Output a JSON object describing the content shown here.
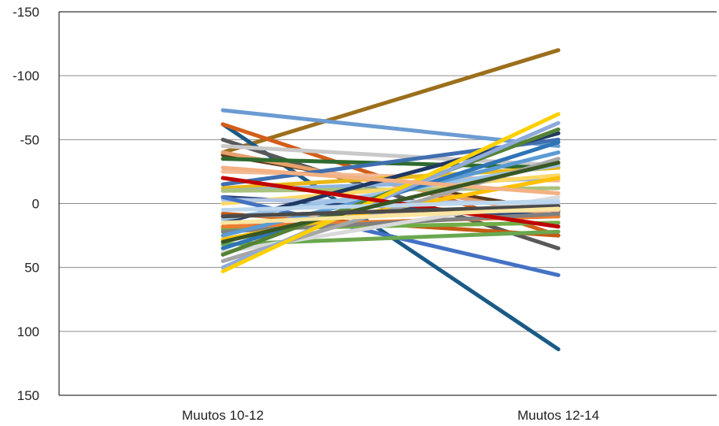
{
  "chart_data": {
    "type": "line",
    "title": "",
    "xlabel": "",
    "ylabel": "",
    "categories": [
      "Muutos 10-12",
      "Muutos 12-14"
    ],
    "y_axis": {
      "reversed": true,
      "ylim": [
        -150,
        150
      ],
      "ticks": [
        -150,
        -100,
        -50,
        0,
        50,
        100,
        150
      ],
      "tick_labels": [
        "-150",
        "-100",
        "-50",
        "0",
        "50",
        "100",
        "150"
      ]
    },
    "grid": true,
    "legend": "none",
    "series": [
      {
        "color": "#9c6f1c",
        "values": [
          -40,
          -120
        ]
      },
      {
        "color": "#1a5a86",
        "values": [
          -62,
          114
        ]
      },
      {
        "color": "#6b9bd1",
        "values": [
          -73,
          -45
        ]
      },
      {
        "color": "#d25e1a",
        "values": [
          -62,
          25
        ]
      },
      {
        "color": "#595959",
        "values": [
          -50,
          35
        ]
      },
      {
        "color": "#c9c9c9",
        "values": [
          -45,
          -30
        ]
      },
      {
        "color": "#5a3a1a",
        "values": [
          -38,
          6
        ]
      },
      {
        "color": "#e8a06a",
        "values": [
          -40,
          10
        ]
      },
      {
        "color": "#2f6b2f",
        "values": [
          -35,
          -28
        ]
      },
      {
        "color": "#f2bb96",
        "values": [
          -25,
          -18
        ]
      },
      {
        "color": "#3f6fb0",
        "values": [
          -15,
          -50
        ]
      },
      {
        "color": "#e8b818",
        "values": [
          -12,
          -28
        ]
      },
      {
        "color": "#8fb4e0",
        "values": [
          -10,
          -20
        ]
      },
      {
        "color": "#264478",
        "values": [
          -5,
          10
        ]
      },
      {
        "color": "#a9c27e",
        "values": [
          -10,
          -12
        ]
      },
      {
        "color": "#ffd966",
        "values": [
          0,
          -22
        ]
      },
      {
        "color": "#b4c7e7",
        "values": [
          -3,
          0
        ]
      },
      {
        "color": "#4472c4",
        "values": [
          -5,
          56
        ]
      },
      {
        "color": "#c55a11",
        "values": [
          8,
          25
        ]
      },
      {
        "color": "#f7c8a0",
        "values": [
          10,
          5
        ]
      },
      {
        "color": "#1f3864",
        "values": [
          15,
          -55
        ]
      },
      {
        "color": "#70ad47",
        "values": [
          20,
          15
        ]
      },
      {
        "color": "#9dc3e6",
        "values": [
          12,
          -30
        ]
      },
      {
        "color": "#ed7d31",
        "values": [
          18,
          10
        ]
      },
      {
        "color": "#808080",
        "values": [
          22,
          8
        ]
      },
      {
        "color": "#5b9bd5",
        "values": [
          25,
          -40
        ]
      },
      {
        "color": "#ffc000",
        "values": [
          28,
          -20
        ]
      },
      {
        "color": "#6aa84f",
        "values": [
          32,
          22
        ]
      },
      {
        "color": "#2e75b6",
        "values": [
          35,
          -48
        ]
      },
      {
        "color": "#d9d9d9",
        "values": [
          38,
          -5
        ]
      },
      {
        "color": "#548235",
        "values": [
          40,
          -58
        ]
      },
      {
        "color": "#a6a6a6",
        "values": [
          45,
          -35
        ]
      },
      {
        "color": "#8eaadb",
        "values": [
          50,
          -63
        ]
      },
      {
        "color": "#ffd000",
        "values": [
          53,
          -70
        ]
      },
      {
        "color": "#c00000",
        "values": [
          -20,
          18
        ]
      },
      {
        "color": "#bdd7ee",
        "values": [
          5,
          -2
        ]
      },
      {
        "color": "#f4b183",
        "values": [
          -28,
          -8
        ]
      },
      {
        "color": "#385723",
        "values": [
          30,
          -32
        ]
      },
      {
        "color": "#4a4a4a",
        "values": [
          10,
          2
        ]
      },
      {
        "color": "#fbe5a0",
        "values": [
          15,
          4
        ]
      }
    ]
  }
}
